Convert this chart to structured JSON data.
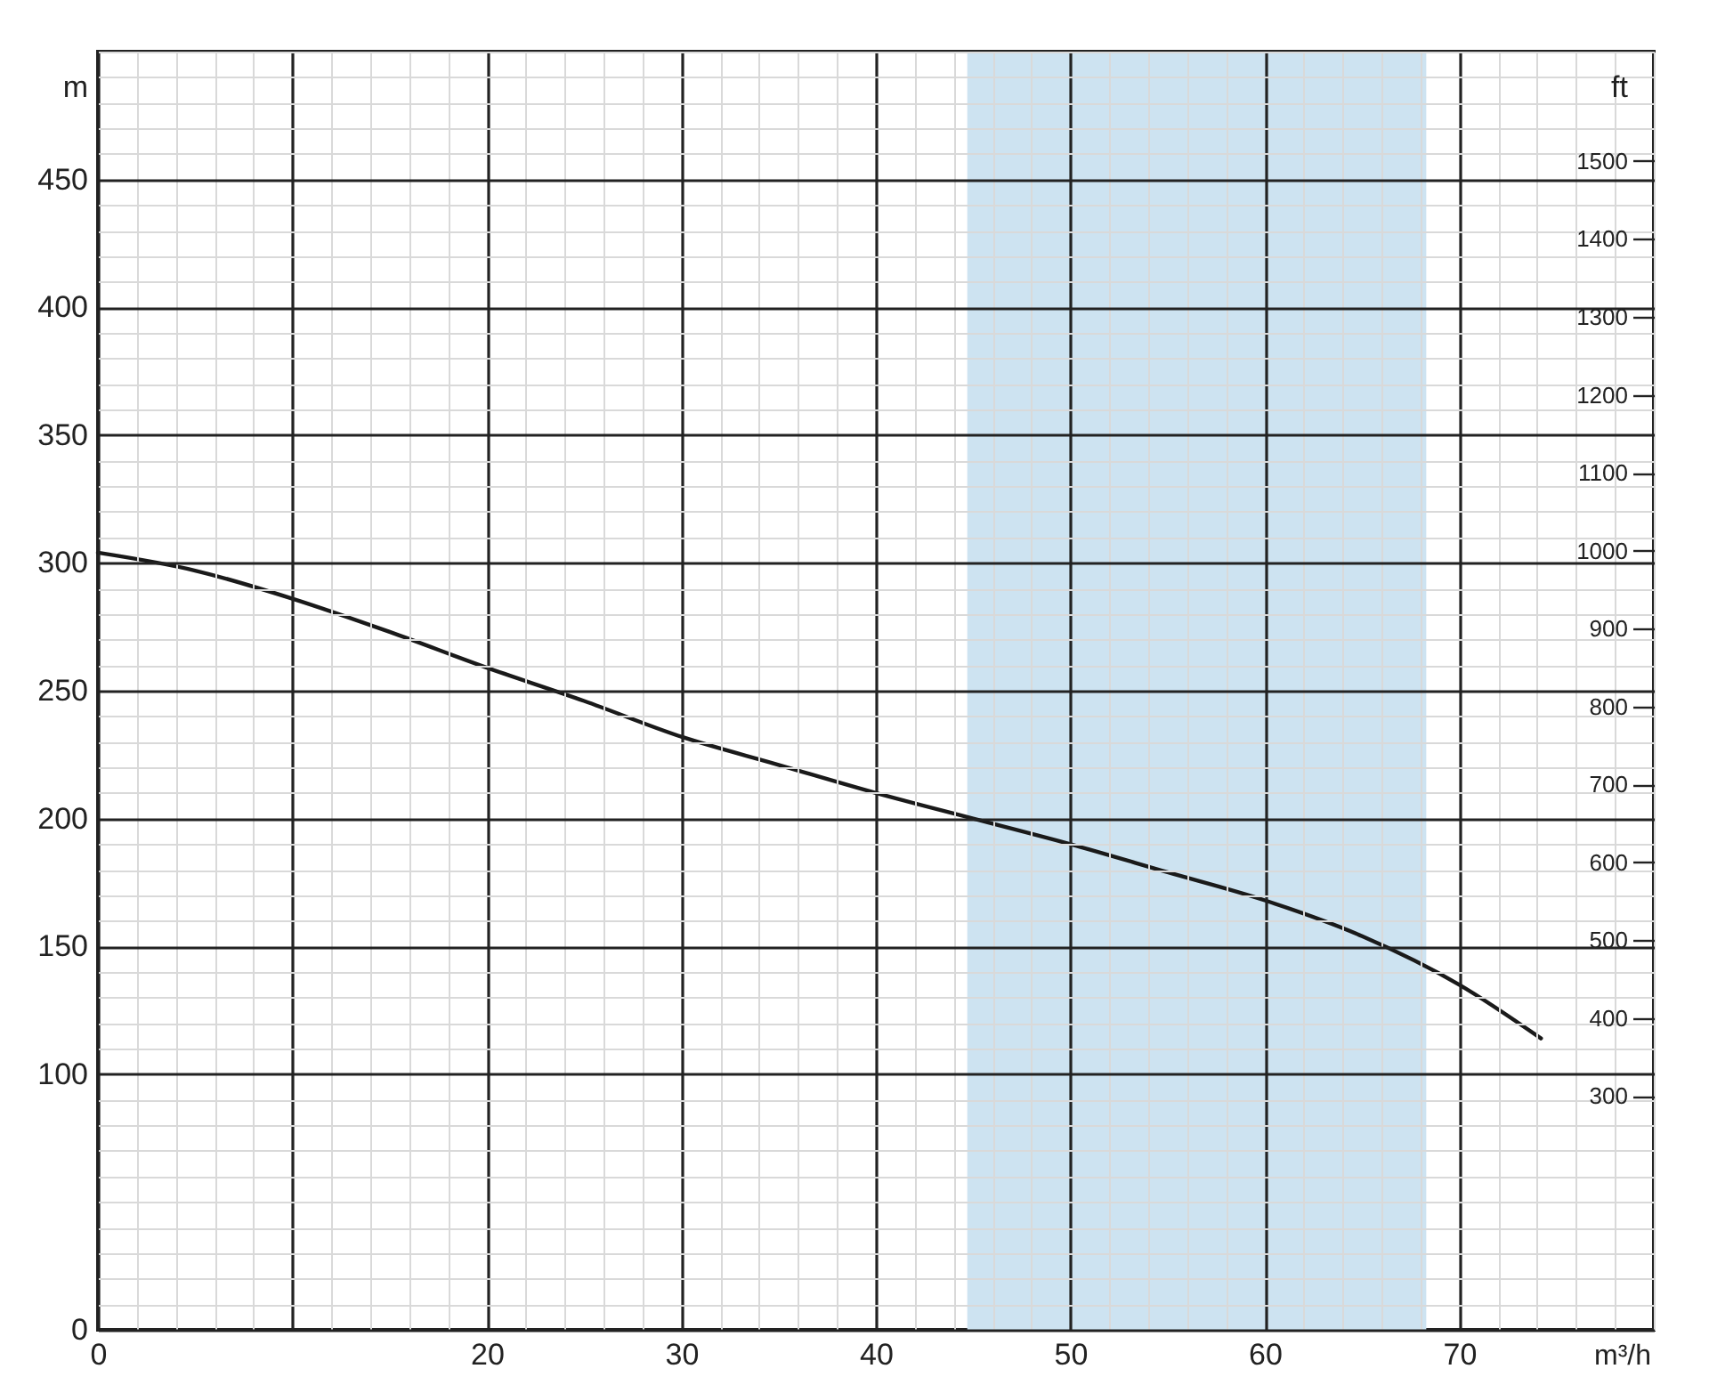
{
  "chart_data": {
    "type": "line",
    "xlabel": "m³/h",
    "ylabel": "m",
    "y2label": "ft",
    "x": [
      0,
      5,
      10,
      15,
      20,
      25,
      30,
      35,
      40,
      45,
      50,
      55,
      60,
      65,
      70,
      74.2
    ],
    "series": [
      {
        "color": "#1a1a1a",
        "values": [
          304,
          297,
          286,
          273,
          259,
          246,
          232,
          221,
          210,
          200,
          190,
          179,
          168,
          154,
          135,
          114
        ]
      }
    ],
    "xlim": [
      0,
      80
    ],
    "xticks": [
      0,
      {
        "value": 10,
        "label": null
      },
      20,
      30,
      40,
      50,
      60,
      70
    ],
    "ylim": [
      0,
      500
    ],
    "yticks": [
      0,
      100,
      150,
      200,
      250,
      300,
      350,
      400,
      450
    ],
    "y2lim": [
      0,
      1640.4
    ],
    "y2ticks": [
      300,
      400,
      500,
      600,
      700,
      800,
      900,
      1000,
      1100,
      1200,
      1300,
      1400,
      1500
    ],
    "bands": [
      {
        "axis": "x",
        "from": 44.7,
        "to": 68.3,
        "color": "#cde3f1"
      }
    ],
    "grid": true
  }
}
